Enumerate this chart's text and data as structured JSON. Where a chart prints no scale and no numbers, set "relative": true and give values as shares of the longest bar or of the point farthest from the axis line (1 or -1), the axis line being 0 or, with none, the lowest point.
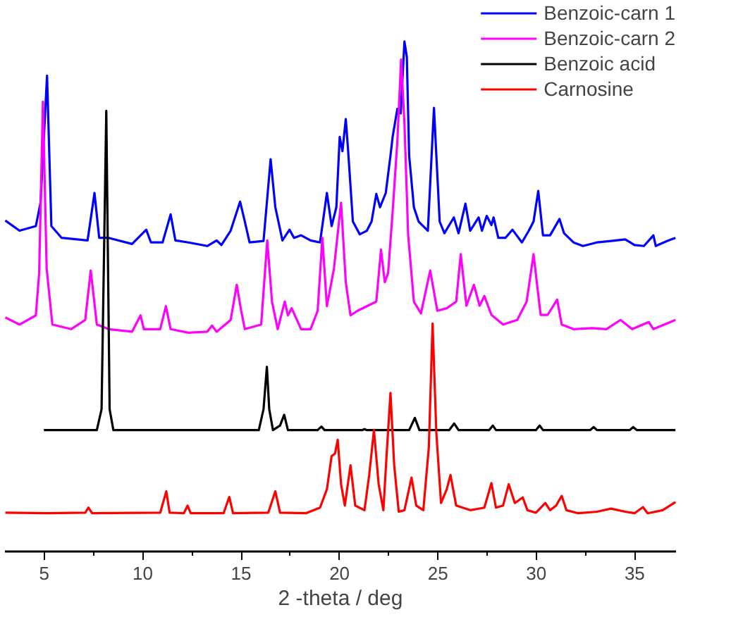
{
  "chart_data": {
    "type": "line",
    "relative": true,
    "xlabel": "2 -theta / deg",
    "xlim": [
      3,
      37.1
    ],
    "xticks": [
      5,
      10,
      15,
      20,
      25,
      30,
      35
    ],
    "grid": false,
    "legend": "top right",
    "marker": "none",
    "line_style": "solid",
    "series": [
      {
        "name": "Benzoic-carn 1",
        "color": "#0000ff",
        "x": [
          3.02,
          3.74,
          4.57,
          4.81,
          5.14,
          5.36,
          5.88,
          7.2,
          7.55,
          7.79,
          8.27,
          9.46,
          10.18,
          10.42,
          11.01,
          11.42,
          11.66,
          12.33,
          13.28,
          13.76,
          14.0,
          14.47,
          14.95,
          15.19,
          15.43,
          16.14,
          16.5,
          16.74,
          17.1,
          17.46,
          17.69,
          18.05,
          18.53,
          19.01,
          19.36,
          19.6,
          19.84,
          20.01,
          20.15,
          20.32,
          20.44,
          20.68,
          21.03,
          21.39,
          21.63,
          21.87,
          22.06,
          22.35,
          22.59,
          22.7,
          22.94,
          23.11,
          23.3,
          23.42,
          23.54,
          23.78,
          24.02,
          24.49,
          24.8,
          25.09,
          25.33,
          25.81,
          26.05,
          26.4,
          26.64,
          27.07,
          27.24,
          27.48,
          27.72,
          27.83,
          28.07,
          28.43,
          28.79,
          29.27,
          29.62,
          29.86,
          30.1,
          30.34,
          30.7,
          31.18,
          31.41,
          31.89,
          32.37,
          33.08,
          33.8,
          34.52,
          34.99,
          35.47,
          35.95,
          36.07,
          36.66,
          37.07
        ],
        "values": [
          0.649,
          0.629,
          0.638,
          0.684,
          0.933,
          0.638,
          0.615,
          0.61,
          0.703,
          0.615,
          0.615,
          0.603,
          0.631,
          0.606,
          0.606,
          0.661,
          0.61,
          0.606,
          0.599,
          0.61,
          0.601,
          0.629,
          0.686,
          0.647,
          0.606,
          0.609,
          0.769,
          0.675,
          0.61,
          0.631,
          0.615,
          0.62,
          0.61,
          0.606,
          0.703,
          0.638,
          0.675,
          0.813,
          0.785,
          0.848,
          0.785,
          0.647,
          0.622,
          0.629,
          0.647,
          0.701,
          0.675,
          0.703,
          0.776,
          0.813,
          0.868,
          0.859,
          1.0,
          0.97,
          0.776,
          0.675,
          0.647,
          0.629,
          0.87,
          0.647,
          0.624,
          0.655,
          0.624,
          0.682,
          0.629,
          0.655,
          0.629,
          0.658,
          0.64,
          0.655,
          0.615,
          0.615,
          0.631,
          0.606,
          0.629,
          0.647,
          0.707,
          0.62,
          0.62,
          0.652,
          0.624,
          0.606,
          0.599,
          0.606,
          0.609,
          0.612,
          0.601,
          0.599,
          0.62,
          0.599,
          0.609,
          0.615
        ]
      },
      {
        "name": "Benzoic-carn 2",
        "color": "#ff00ff",
        "x": [
          3.02,
          3.74,
          4.57,
          4.74,
          4.93,
          5.12,
          5.41,
          6.36,
          7.08,
          7.36,
          7.67,
          8.27,
          9.46,
          9.89,
          10.06,
          10.89,
          11.18,
          11.42,
          12.33,
          13.28,
          13.52,
          13.76,
          14.47,
          14.78,
          15.0,
          15.19,
          16.02,
          16.33,
          16.57,
          16.86,
          17.22,
          17.38,
          17.57,
          18.05,
          18.53,
          18.89,
          19.13,
          19.36,
          19.72,
          20.08,
          20.32,
          20.56,
          20.92,
          21.39,
          21.87,
          22.11,
          22.3,
          22.47,
          22.7,
          22.94,
          23.13,
          23.3,
          23.49,
          23.78,
          24.14,
          24.61,
          24.97,
          25.45,
          25.93,
          26.16,
          26.45,
          26.83,
          27.12,
          27.36,
          27.72,
          28.31,
          29.03,
          29.51,
          29.86,
          30.22,
          30.58,
          31.06,
          31.29,
          31.89,
          32.84,
          33.56,
          34.28,
          34.87,
          35.71,
          35.95,
          37.07
        ],
        "values": [
          0.459,
          0.445,
          0.463,
          0.546,
          0.882,
          0.555,
          0.445,
          0.436,
          0.454,
          0.551,
          0.445,
          0.436,
          0.431,
          0.463,
          0.436,
          0.436,
          0.481,
          0.436,
          0.429,
          0.431,
          0.443,
          0.431,
          0.454,
          0.523,
          0.473,
          0.436,
          0.445,
          0.61,
          0.49,
          0.436,
          0.49,
          0.463,
          0.477,
          0.436,
          0.436,
          0.472,
          0.615,
          0.481,
          0.555,
          0.684,
          0.528,
          0.463,
          0.472,
          0.481,
          0.49,
          0.592,
          0.528,
          0.546,
          0.666,
          0.804,
          0.965,
          0.84,
          0.62,
          0.49,
          0.467,
          0.551,
          0.472,
          0.477,
          0.49,
          0.583,
          0.482,
          0.523,
          0.482,
          0.501,
          0.464,
          0.445,
          0.454,
          0.49,
          0.583,
          0.464,
          0.464,
          0.494,
          0.445,
          0.436,
          0.438,
          0.436,
          0.454,
          0.436,
          0.45,
          0.436,
          0.454
        ]
      },
      {
        "name": "Benzoic acid",
        "color": "#000000",
        "x": [
          4.98,
          7.67,
          7.91,
          8.15,
          8.32,
          8.51,
          15.9,
          16.14,
          16.31,
          16.43,
          16.62,
          16.98,
          17.19,
          17.38,
          18.89,
          19.08,
          19.24,
          21.15,
          21.27,
          21.39,
          23.54,
          23.83,
          24.06,
          25.57,
          25.83,
          26.05,
          27.6,
          27.79,
          27.95,
          29.98,
          30.17,
          30.34,
          32.73,
          32.92,
          33.08,
          34.75,
          34.92,
          35.11,
          37.07
        ],
        "values": [
          0.238,
          0.238,
          0.279,
          0.864,
          0.279,
          0.238,
          0.238,
          0.279,
          0.362,
          0.279,
          0.238,
          0.247,
          0.268,
          0.238,
          0.238,
          0.245,
          0.238,
          0.238,
          0.24,
          0.238,
          0.238,
          0.262,
          0.238,
          0.238,
          0.251,
          0.238,
          0.238,
          0.247,
          0.238,
          0.238,
          0.247,
          0.238,
          0.238,
          0.244,
          0.238,
          0.238,
          0.244,
          0.238,
          0.238
        ]
      },
      {
        "name": "Carnosine",
        "color": "#ff0000",
        "x": [
          3.02,
          5.17,
          7.08,
          7.24,
          7.43,
          10.89,
          11.2,
          11.37,
          12.09,
          12.28,
          12.44,
          14.11,
          14.4,
          14.59,
          16.38,
          16.74,
          16.98,
          18.29,
          19.01,
          19.36,
          19.6,
          19.77,
          19.91,
          20.08,
          20.27,
          20.56,
          20.8,
          21.27,
          21.51,
          21.75,
          21.99,
          22.23,
          22.39,
          22.59,
          22.78,
          23.01,
          23.3,
          23.66,
          23.9,
          24.26,
          24.54,
          24.73,
          24.92,
          25.16,
          25.45,
          25.64,
          25.93,
          26.64,
          27.36,
          27.72,
          27.95,
          28.31,
          28.6,
          28.91,
          29.31,
          29.55,
          29.98,
          30.46,
          30.7,
          31.01,
          31.29,
          31.53,
          32.13,
          33.08,
          33.8,
          34.52,
          34.99,
          35.42,
          35.66,
          36.42,
          37.07
        ],
        "values": [
          0.076,
          0.075,
          0.076,
          0.086,
          0.075,
          0.076,
          0.118,
          0.076,
          0.075,
          0.09,
          0.075,
          0.075,
          0.107,
          0.075,
          0.076,
          0.118,
          0.076,
          0.075,
          0.086,
          0.122,
          0.187,
          0.192,
          0.219,
          0.132,
          0.09,
          0.169,
          0.09,
          0.081,
          0.15,
          0.238,
          0.132,
          0.081,
          0.187,
          0.311,
          0.169,
          0.078,
          0.081,
          0.145,
          0.09,
          0.081,
          0.205,
          0.447,
          0.233,
          0.095,
          0.122,
          0.15,
          0.09,
          0.081,
          0.086,
          0.134,
          0.086,
          0.09,
          0.132,
          0.095,
          0.106,
          0.081,
          0.076,
          0.095,
          0.081,
          0.09,
          0.109,
          0.081,
          0.075,
          0.078,
          0.084,
          0.078,
          0.075,
          0.087,
          0.075,
          0.081,
          0.097
        ]
      }
    ]
  }
}
